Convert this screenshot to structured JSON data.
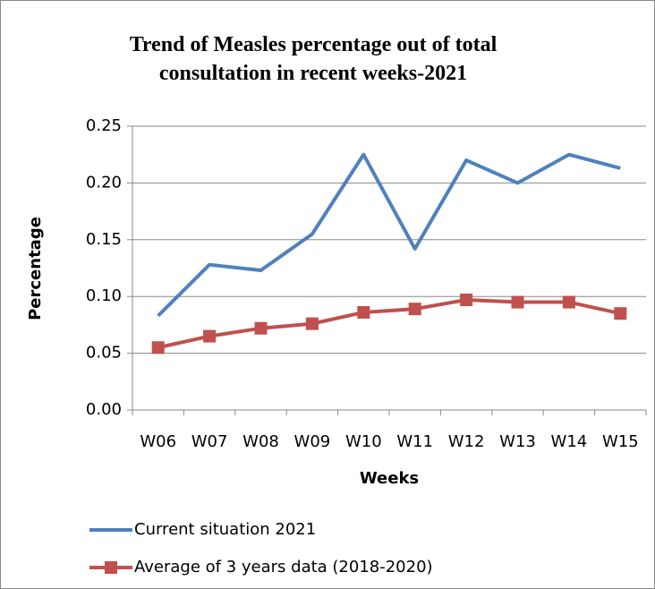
{
  "chart_data": {
    "type": "line",
    "title": "Trend of Measles percentage out of total consultation in recent weeks-2021",
    "x_label": "Weeks",
    "y_label": "Percentage",
    "categories": [
      "W06",
      "W07",
      "W08",
      "W09",
      "W10",
      "W11",
      "W12",
      "W13",
      "W14",
      "W15"
    ],
    "series": [
      {
        "name": "Current situation 2021",
        "color": "#4f81bd",
        "values": [
          0.083,
          0.128,
          0.123,
          0.155,
          0.225,
          0.142,
          0.22,
          0.2,
          0.225,
          0.213
        ]
      },
      {
        "name": "Average of 3 years data (2018-2020)",
        "color": "#c0504d",
        "marker": "square",
        "values": [
          0.055,
          0.065,
          0.072,
          0.076,
          0.086,
          0.089,
          0.097,
          0.095,
          0.095,
          0.085
        ]
      }
    ],
    "ylim": [
      0,
      0.25
    ],
    "yticks": [
      {
        "value": 0,
        "label": "0.00"
      },
      {
        "value": 0.05,
        "label": "0.05"
      },
      {
        "value": 0.1,
        "label": "0.10"
      },
      {
        "value": 0.15,
        "label": "0.15"
      },
      {
        "value": 0.2,
        "label": "0.20"
      },
      {
        "value": 0.25,
        "label": "0.25"
      }
    ],
    "grid": true,
    "legend": "bottom"
  }
}
